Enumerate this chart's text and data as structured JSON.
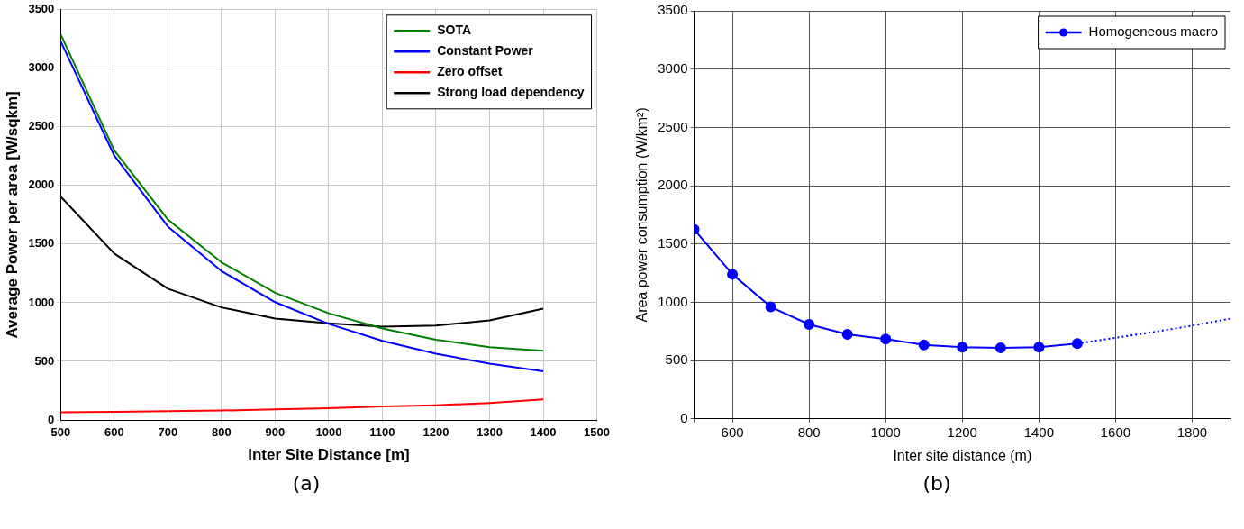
{
  "chart_data": [
    {
      "type": "line",
      "xlabel": "Inter Site Distance [m]",
      "ylabel": "Average Power per area [W/sqkm]",
      "x": [
        500,
        600,
        700,
        800,
        900,
        1000,
        1100,
        1200,
        1300,
        1400
      ],
      "xlim": [
        500,
        1500
      ],
      "xticks": [
        500,
        600,
        700,
        800,
        900,
        1000,
        1100,
        1200,
        1300,
        1400,
        1500
      ],
      "ylim": [
        0,
        3500
      ],
      "yticks": [
        0,
        500,
        1000,
        1500,
        2000,
        2500,
        3000,
        3500
      ],
      "grid": true,
      "legend": "top right",
      "marker": "none",
      "line_style": "solid",
      "annotations": [
        "(a)"
      ],
      "series": [
        {
          "name": "SOTA",
          "color": "#008000",
          "values": [
            3290,
            2300,
            1710,
            1345,
            1085,
            910,
            780,
            685,
            620,
            590
          ]
        },
        {
          "name": "Constant Power",
          "color": "#0000ff",
          "values": [
            3230,
            2255,
            1650,
            1270,
            1005,
            820,
            675,
            565,
            480,
            415
          ]
        },
        {
          "name": "Zero offset",
          "color": "#ff0000",
          "values": [
            65,
            70,
            75,
            80,
            90,
            100,
            115,
            125,
            145,
            175
          ]
        },
        {
          "name": "Strong load dependency",
          "color": "#000000",
          "values": [
            1905,
            1420,
            1120,
            960,
            865,
            825,
            795,
            805,
            850,
            950
          ]
        }
      ]
    },
    {
      "type": "line",
      "xlabel": "Inter site distance (m)",
      "ylabel": "Area power consumption (W/km²)",
      "xlim": [
        500,
        1900
      ],
      "xticks": [
        {
          "value": 500,
          "label": null
        },
        600,
        800,
        1000,
        1200,
        1400,
        1600,
        1800
      ],
      "ylim": [
        0,
        3500
      ],
      "yticks": [
        0,
        500,
        1000,
        1500,
        2000,
        2500,
        3000,
        3500
      ],
      "grid": true,
      "legend": "top right",
      "annotations": [
        "(b)"
      ],
      "series": [
        {
          "name": "Homogeneous macro",
          "color": "#0000ff",
          "marker": "circle",
          "line_style": "solid",
          "x": [
            500,
            600,
            700,
            800,
            900,
            1000,
            1100,
            1200,
            1300,
            1400,
            1500
          ],
          "values": [
            1625,
            1240,
            960,
            810,
            725,
            685,
            635,
            615,
            610,
            615,
            645
          ]
        },
        {
          "color": "#0000ff",
          "marker": "none",
          "line_style": "dotted",
          "x": [
            1500,
            1600,
            1700,
            1800,
            1900
          ],
          "values": [
            645,
            695,
            745,
            800,
            860
          ]
        }
      ]
    }
  ]
}
